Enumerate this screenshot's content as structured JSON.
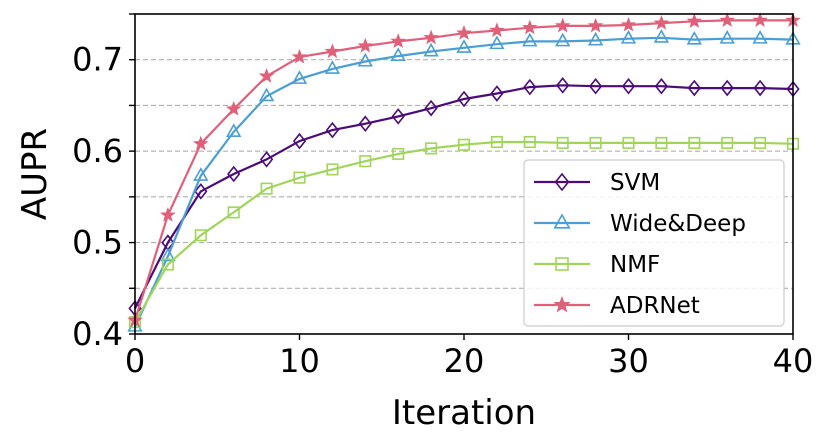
{
  "chart_data": {
    "type": "line",
    "title": "",
    "xlabel": "Iteration",
    "ylabel": "AUPR",
    "xlim": [
      0,
      40
    ],
    "ylim": [
      0.4,
      0.75
    ],
    "xticks": [
      0,
      10,
      20,
      30,
      40
    ],
    "yticks": [
      0.4,
      0.5,
      0.6,
      0.7
    ],
    "ytick_labels": [
      "0.4",
      "0.5",
      "0.6",
      "0.7"
    ],
    "grid": "horizontal dashed at every 0.05",
    "legend_position": "lower-right",
    "x": [
      0,
      2,
      4,
      6,
      8,
      10,
      12,
      14,
      16,
      18,
      20,
      22,
      24,
      26,
      28,
      30,
      32,
      34,
      36,
      38,
      40
    ],
    "series": [
      {
        "name": "SVM",
        "color": "#4b0c78",
        "marker": "diamond",
        "values": [
          0.428,
          0.5,
          0.556,
          0.575,
          0.591,
          0.611,
          0.623,
          0.63,
          0.638,
          0.647,
          0.657,
          0.663,
          0.67,
          0.672,
          0.671,
          0.671,
          0.671,
          0.669,
          0.669,
          0.669,
          0.668
        ]
      },
      {
        "name": "Wide&Deep",
        "color": "#4a9ed4",
        "marker": "triangle",
        "values": [
          0.408,
          0.485,
          0.573,
          0.621,
          0.66,
          0.679,
          0.69,
          0.698,
          0.704,
          0.709,
          0.713,
          0.717,
          0.72,
          0.72,
          0.721,
          0.723,
          0.724,
          0.722,
          0.723,
          0.723,
          0.722
        ]
      },
      {
        "name": "NMF",
        "color": "#9fd65a",
        "marker": "square",
        "values": [
          0.413,
          0.476,
          0.508,
          0.533,
          0.559,
          0.571,
          0.58,
          0.589,
          0.597,
          0.603,
          0.607,
          0.61,
          0.61,
          0.609,
          0.609,
          0.609,
          0.609,
          0.609,
          0.609,
          0.609,
          0.608
        ]
      },
      {
        "name": "ADRNet",
        "color": "#e0607a",
        "marker": "star",
        "values": [
          0.415,
          0.53,
          0.608,
          0.646,
          0.682,
          0.703,
          0.709,
          0.715,
          0.72,
          0.724,
          0.729,
          0.732,
          0.735,
          0.737,
          0.737,
          0.738,
          0.74,
          0.742,
          0.743,
          0.743,
          0.743
        ]
      }
    ]
  }
}
